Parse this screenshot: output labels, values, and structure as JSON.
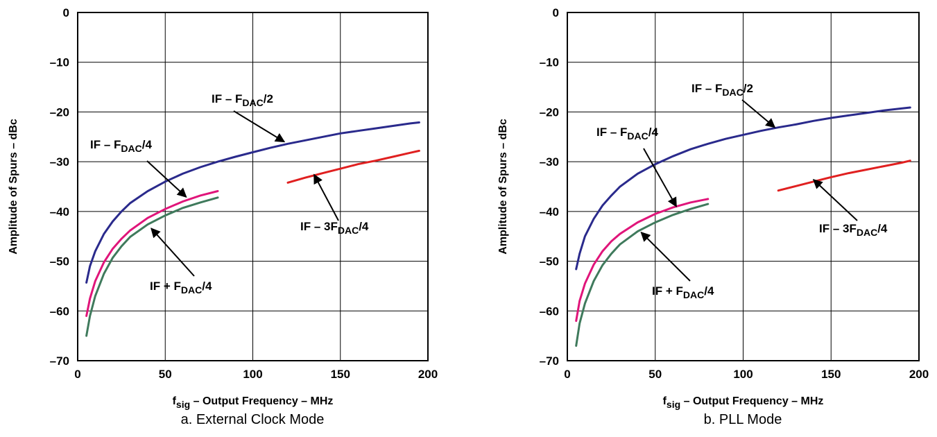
{
  "chart_data": [
    {
      "type": "line",
      "caption": "a. External Clock Mode",
      "xlabel_main": "f",
      "xlabel_sub": "sig",
      "xlabel_rest": " – Output Frequency – MHz",
      "ylabel": "Amplitude of Spurs – dBc",
      "xlim": [
        0,
        200
      ],
      "ylim": [
        -70,
        0
      ],
      "xticks": [
        "0",
        "50",
        "100",
        "150",
        "200"
      ],
      "yticks": [
        "0",
        "–10",
        "–20",
        "–30",
        "–40",
        "–50",
        "–60",
        "–70"
      ],
      "grid": true,
      "series": [
        {
          "color": "#2a2a8c",
          "label_parts": [
            "IF – F",
            "DAC",
            "/2"
          ],
          "points": [
            [
              5,
              -54.3
            ],
            [
              7,
              -51
            ],
            [
              10,
              -48
            ],
            [
              15,
              -44.5
            ],
            [
              20,
              -42
            ],
            [
              25,
              -40
            ],
            [
              30,
              -38.3
            ],
            [
              40,
              -35.9
            ],
            [
              50,
              -34
            ],
            [
              60,
              -32.4
            ],
            [
              70,
              -31.1
            ],
            [
              80,
              -30
            ],
            [
              90,
              -29
            ],
            [
              100,
              -28.1
            ],
            [
              110,
              -27.2
            ],
            [
              120,
              -26.4
            ],
            [
              130,
              -25.7
            ],
            [
              140,
              -25
            ],
            [
              150,
              -24.3
            ],
            [
              160,
              -23.8
            ],
            [
              170,
              -23.3
            ],
            [
              180,
              -22.8
            ],
            [
              190,
              -22.3
            ],
            [
              195,
              -22.1
            ]
          ]
        },
        {
          "color": "#e0157a",
          "label_parts": [
            "IF – F",
            "DAC",
            "/4"
          ],
          "points": [
            [
              5,
              -61
            ],
            [
              7,
              -57.5
            ],
            [
              10,
              -54
            ],
            [
              15,
              -50.2
            ],
            [
              20,
              -47.5
            ],
            [
              25,
              -45.5
            ],
            [
              30,
              -43.8
            ],
            [
              40,
              -41.3
            ],
            [
              50,
              -39.5
            ],
            [
              60,
              -38
            ],
            [
              70,
              -36.8
            ],
            [
              80,
              -35.9
            ]
          ]
        },
        {
          "color": "#3f7a5c",
          "label_parts": [
            "IF + F",
            "DAC",
            "/4"
          ],
          "points": [
            [
              5,
              -65
            ],
            [
              7,
              -61
            ],
            [
              10,
              -57
            ],
            [
              15,
              -52.5
            ],
            [
              20,
              -49.3
            ],
            [
              25,
              -47
            ],
            [
              30,
              -45.1
            ],
            [
              40,
              -42.6
            ],
            [
              50,
              -40.8
            ],
            [
              60,
              -39.3
            ],
            [
              70,
              -38.2
            ],
            [
              80,
              -37.2
            ]
          ]
        },
        {
          "color": "#e02020",
          "label_parts": [
            "IF – 3F",
            "DAC",
            "/4"
          ],
          "points": [
            [
              120,
              -34.2
            ],
            [
              130,
              -33.2
            ],
            [
              140,
              -32.3
            ],
            [
              150,
              -31.4
            ],
            [
              160,
              -30.5
            ],
            [
              170,
              -29.8
            ],
            [
              180,
              -29
            ],
            [
              190,
              -28.2
            ],
            [
              195,
              -27.8
            ]
          ]
        }
      ]
    },
    {
      "type": "line",
      "caption": "b. PLL Mode",
      "xlabel_main": "f",
      "xlabel_sub": "sig",
      "xlabel_rest": " – Output Frequency – MHz",
      "ylabel": "Amplitude of Spurs – dBc",
      "xlim": [
        0,
        200
      ],
      "ylim": [
        -70,
        0
      ],
      "xticks": [
        "0",
        "50",
        "100",
        "150",
        "200"
      ],
      "yticks": [
        "0",
        "–10",
        "–20",
        "–30",
        "–40",
        "–50",
        "–60",
        "–70"
      ],
      "grid": true,
      "series": [
        {
          "color": "#2a2a8c",
          "label_parts": [
            "IF – F",
            "DAC",
            "/2"
          ],
          "points": [
            [
              5,
              -51.6
            ],
            [
              7,
              -48.5
            ],
            [
              10,
              -45
            ],
            [
              15,
              -41.5
            ],
            [
              20,
              -38.8
            ],
            [
              25,
              -36.8
            ],
            [
              30,
              -35
            ],
            [
              40,
              -32.4
            ],
            [
              50,
              -30.5
            ],
            [
              60,
              -28.9
            ],
            [
              70,
              -27.5
            ],
            [
              80,
              -26.4
            ],
            [
              90,
              -25.4
            ],
            [
              100,
              -24.6
            ],
            [
              110,
              -23.8
            ],
            [
              120,
              -23.1
            ],
            [
              130,
              -22.5
            ],
            [
              140,
              -21.8
            ],
            [
              150,
              -21.2
            ],
            [
              160,
              -20.7
            ],
            [
              170,
              -20.2
            ],
            [
              180,
              -19.7
            ],
            [
              190,
              -19.3
            ],
            [
              195,
              -19.1
            ]
          ]
        },
        {
          "color": "#e0157a",
          "label_parts": [
            "IF – F",
            "DAC",
            "/4"
          ],
          "points": [
            [
              5,
              -62
            ],
            [
              7,
              -58
            ],
            [
              10,
              -54.5
            ],
            [
              15,
              -50.7
            ],
            [
              20,
              -48
            ],
            [
              25,
              -46
            ],
            [
              30,
              -44.5
            ],
            [
              40,
              -42.2
            ],
            [
              50,
              -40.5
            ],
            [
              60,
              -39.2
            ],
            [
              70,
              -38.2
            ],
            [
              80,
              -37.5
            ]
          ]
        },
        {
          "color": "#3f7a5c",
          "label_parts": [
            "IF + F",
            "DAC",
            "/4"
          ],
          "points": [
            [
              5,
              -67
            ],
            [
              7,
              -62.5
            ],
            [
              10,
              -58.5
            ],
            [
              15,
              -54
            ],
            [
              20,
              -50.8
            ],
            [
              25,
              -48.5
            ],
            [
              30,
              -46.6
            ],
            [
              40,
              -44
            ],
            [
              50,
              -42.2
            ],
            [
              60,
              -40.7
            ],
            [
              70,
              -39.5
            ],
            [
              80,
              -38.5
            ]
          ]
        },
        {
          "color": "#e02020",
          "label_parts": [
            "IF – 3F",
            "DAC",
            "/4"
          ],
          "points": [
            [
              120,
              -35.8
            ],
            [
              130,
              -34.9
            ],
            [
              140,
              -34
            ],
            [
              150,
              -33.1
            ],
            [
              160,
              -32.3
            ],
            [
              170,
              -31.6
            ],
            [
              180,
              -30.9
            ],
            [
              190,
              -30.2
            ],
            [
              195,
              -29.8
            ]
          ]
        }
      ]
    }
  ]
}
